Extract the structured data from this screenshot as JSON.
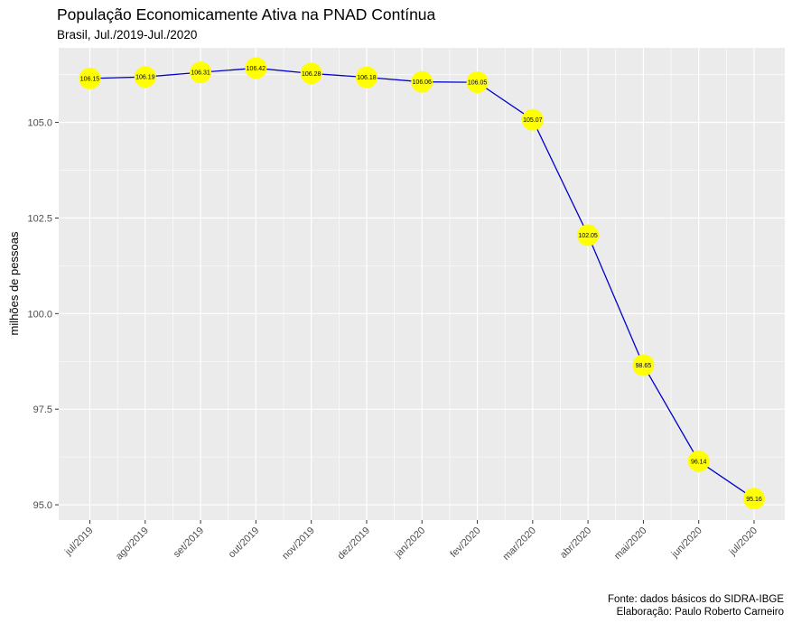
{
  "chart_data": {
    "type": "line",
    "title": "População Economicamente Ativa na PNAD Contínua",
    "subtitle": "Brasil, Jul./2019-Jul./2020",
    "xlabel": "",
    "ylabel": "milhões de pessoas",
    "categories": [
      "jul/2019",
      "ago/2019",
      "set/2019",
      "out/2019",
      "nov/2019",
      "dez/2019",
      "jan/2020",
      "fev/2020",
      "mar/2020",
      "abr/2020",
      "mai/2020",
      "jun/2020",
      "jul/2020"
    ],
    "values": [
      106.15,
      106.19,
      106.31,
      106.42,
      106.28,
      106.18,
      106.06,
      106.05,
      105.07,
      102.05,
      98.65,
      96.14,
      95.16
    ],
    "data_labels": [
      "106.15",
      "106.19",
      "106.31",
      "106.42",
      "106.28",
      "106.18",
      "106.06",
      "106.05",
      "105.07",
      "102.05",
      "98.65",
      "96.14",
      "95.16"
    ],
    "y_ticks": [
      95.0,
      97.5,
      100.0,
      102.5,
      105.0
    ],
    "y_tick_labels": [
      "95.0",
      "97.5",
      "100.0",
      "102.5",
      "105.0"
    ],
    "ylim": [
      94.6,
      106.95
    ],
    "grid": true,
    "line_color": "#0000CD",
    "point_color": "#FFFF00",
    "panel_color": "#EBEBEB",
    "caption": [
      "Fonte: dados básicos do SIDRA-IBGE",
      "Elaboração: Paulo Roberto Carneiro"
    ]
  }
}
